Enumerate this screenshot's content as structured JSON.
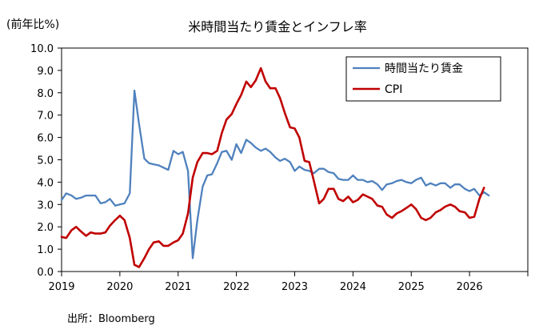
{
  "unit_label": "(前年比%)",
  "source": "出所：Bloomberg",
  "chart_data": {
    "type": "line",
    "title": "米時間当たり賃金とインフレ率",
    "ylim": [
      0,
      10
    ],
    "yticks": [
      "0.0",
      "1.0",
      "2.0",
      "3.0",
      "4.0",
      "5.0",
      "6.0",
      "7.0",
      "8.0",
      "9.0",
      "10.0"
    ],
    "xlim": [
      2019.0,
      2027.0
    ],
    "xticks": [
      "2019",
      "2020",
      "2021",
      "2022",
      "2023",
      "2024",
      "2025",
      "2026"
    ],
    "grid": false,
    "legend_position": "top-right",
    "series": [
      {
        "name": "時間当たり賃金",
        "color": "#4f81bd",
        "points": [
          [
            2019.0,
            3.2
          ],
          [
            2019.08,
            3.5
          ],
          [
            2019.17,
            3.4
          ],
          [
            2019.25,
            3.25
          ],
          [
            2019.33,
            3.3
          ],
          [
            2019.42,
            3.4
          ],
          [
            2019.5,
            3.4
          ],
          [
            2019.58,
            3.4
          ],
          [
            2019.67,
            3.05
          ],
          [
            2019.75,
            3.1
          ],
          [
            2019.83,
            3.25
          ],
          [
            2019.92,
            2.95
          ],
          [
            2020.0,
            3.0
          ],
          [
            2020.08,
            3.05
          ],
          [
            2020.17,
            3.5
          ],
          [
            2020.25,
            8.1
          ],
          [
            2020.33,
            6.6
          ],
          [
            2020.42,
            5.05
          ],
          [
            2020.5,
            4.85
          ],
          [
            2020.58,
            4.8
          ],
          [
            2020.67,
            4.75
          ],
          [
            2020.75,
            4.65
          ],
          [
            2020.83,
            4.55
          ],
          [
            2020.92,
            5.4
          ],
          [
            2021.0,
            5.25
          ],
          [
            2021.08,
            5.35
          ],
          [
            2021.17,
            4.5
          ],
          [
            2021.25,
            0.6
          ],
          [
            2021.33,
            2.3
          ],
          [
            2021.42,
            3.8
          ],
          [
            2021.5,
            4.3
          ],
          [
            2021.58,
            4.35
          ],
          [
            2021.67,
            4.85
          ],
          [
            2021.75,
            5.35
          ],
          [
            2021.83,
            5.4
          ],
          [
            2021.92,
            5.0
          ],
          [
            2022.0,
            5.7
          ],
          [
            2022.08,
            5.3
          ],
          [
            2022.17,
            5.9
          ],
          [
            2022.25,
            5.75
          ],
          [
            2022.33,
            5.55
          ],
          [
            2022.42,
            5.4
          ],
          [
            2022.5,
            5.5
          ],
          [
            2022.58,
            5.35
          ],
          [
            2022.67,
            5.1
          ],
          [
            2022.75,
            4.95
          ],
          [
            2022.83,
            5.05
          ],
          [
            2022.92,
            4.9
          ],
          [
            2023.0,
            4.5
          ],
          [
            2023.08,
            4.7
          ],
          [
            2023.17,
            4.55
          ],
          [
            2023.25,
            4.5
          ],
          [
            2023.33,
            4.4
          ],
          [
            2023.42,
            4.6
          ],
          [
            2023.5,
            4.6
          ],
          [
            2023.58,
            4.45
          ],
          [
            2023.67,
            4.4
          ],
          [
            2023.75,
            4.15
          ],
          [
            2023.83,
            4.1
          ],
          [
            2023.92,
            4.1
          ],
          [
            2024.0,
            4.3
          ],
          [
            2024.08,
            4.1
          ],
          [
            2024.17,
            4.1
          ],
          [
            2024.25,
            4.0
          ],
          [
            2024.33,
            4.05
          ],
          [
            2024.42,
            3.9
          ],
          [
            2024.5,
            3.65
          ],
          [
            2024.58,
            3.9
          ],
          [
            2024.67,
            3.95
          ],
          [
            2024.75,
            4.05
          ],
          [
            2024.83,
            4.1
          ],
          [
            2024.92,
            4.0
          ],
          [
            2025.0,
            3.95
          ],
          [
            2025.08,
            4.1
          ],
          [
            2025.17,
            4.2
          ],
          [
            2025.25,
            3.85
          ],
          [
            2025.33,
            3.95
          ],
          [
            2025.42,
            3.85
          ],
          [
            2025.5,
            3.95
          ],
          [
            2025.58,
            3.95
          ],
          [
            2025.67,
            3.75
          ],
          [
            2025.75,
            3.9
          ],
          [
            2025.83,
            3.9
          ],
          [
            2025.92,
            3.7
          ],
          [
            2026.0,
            3.6
          ],
          [
            2026.08,
            3.7
          ],
          [
            2026.17,
            3.4
          ],
          [
            2026.25,
            3.55
          ],
          [
            2026.33,
            3.4
          ]
        ]
      },
      {
        "name": "CPI",
        "color": "#c00000",
        "points": [
          [
            2019.0,
            1.55
          ],
          [
            2019.08,
            1.5
          ],
          [
            2019.17,
            1.85
          ],
          [
            2019.25,
            2.0
          ],
          [
            2019.33,
            1.8
          ],
          [
            2019.42,
            1.6
          ],
          [
            2019.5,
            1.75
          ],
          [
            2019.58,
            1.7
          ],
          [
            2019.67,
            1.7
          ],
          [
            2019.75,
            1.75
          ],
          [
            2019.83,
            2.05
          ],
          [
            2019.92,
            2.3
          ],
          [
            2020.0,
            2.5
          ],
          [
            2020.08,
            2.3
          ],
          [
            2020.17,
            1.5
          ],
          [
            2020.25,
            0.3
          ],
          [
            2020.33,
            0.2
          ],
          [
            2020.42,
            0.6
          ],
          [
            2020.5,
            1.0
          ],
          [
            2020.58,
            1.3
          ],
          [
            2020.67,
            1.35
          ],
          [
            2020.75,
            1.15
          ],
          [
            2020.83,
            1.15
          ],
          [
            2020.92,
            1.3
          ],
          [
            2021.0,
            1.4
          ],
          [
            2021.08,
            1.7
          ],
          [
            2021.17,
            2.6
          ],
          [
            2021.25,
            4.2
          ],
          [
            2021.33,
            4.9
          ],
          [
            2021.42,
            5.3
          ],
          [
            2021.5,
            5.3
          ],
          [
            2021.58,
            5.25
          ],
          [
            2021.67,
            5.4
          ],
          [
            2021.75,
            6.2
          ],
          [
            2021.83,
            6.8
          ],
          [
            2021.92,
            7.05
          ],
          [
            2022.0,
            7.5
          ],
          [
            2022.08,
            7.9
          ],
          [
            2022.17,
            8.5
          ],
          [
            2022.25,
            8.25
          ],
          [
            2022.33,
            8.55
          ],
          [
            2022.42,
            9.1
          ],
          [
            2022.5,
            8.5
          ],
          [
            2022.58,
            8.2
          ],
          [
            2022.67,
            8.2
          ],
          [
            2022.75,
            7.75
          ],
          [
            2022.83,
            7.1
          ],
          [
            2022.92,
            6.45
          ],
          [
            2023.0,
            6.4
          ],
          [
            2023.08,
            6.0
          ],
          [
            2023.17,
            4.95
          ],
          [
            2023.25,
            4.9
          ],
          [
            2023.33,
            4.05
          ],
          [
            2023.42,
            3.05
          ],
          [
            2023.5,
            3.25
          ],
          [
            2023.58,
            3.7
          ],
          [
            2023.67,
            3.7
          ],
          [
            2023.75,
            3.25
          ],
          [
            2023.83,
            3.15
          ],
          [
            2023.92,
            3.35
          ],
          [
            2024.0,
            3.1
          ],
          [
            2024.08,
            3.2
          ],
          [
            2024.17,
            3.45
          ],
          [
            2024.25,
            3.35
          ],
          [
            2024.33,
            3.25
          ],
          [
            2024.42,
            2.95
          ],
          [
            2024.5,
            2.9
          ],
          [
            2024.58,
            2.55
          ],
          [
            2024.67,
            2.4
          ],
          [
            2024.75,
            2.6
          ],
          [
            2024.83,
            2.7
          ],
          [
            2024.92,
            2.85
          ],
          [
            2025.0,
            3.0
          ],
          [
            2025.08,
            2.8
          ],
          [
            2025.17,
            2.4
          ],
          [
            2025.25,
            2.3
          ],
          [
            2025.33,
            2.4
          ],
          [
            2025.42,
            2.65
          ],
          [
            2025.5,
            2.75
          ],
          [
            2025.58,
            2.9
          ],
          [
            2025.67,
            3.0
          ],
          [
            2025.75,
            2.9
          ],
          [
            2025.83,
            2.7
          ],
          [
            2025.92,
            2.65
          ],
          [
            2026.0,
            2.4
          ],
          [
            2026.08,
            2.45
          ],
          [
            2026.17,
            3.25
          ],
          [
            2026.25,
            3.75
          ]
        ]
      }
    ]
  }
}
